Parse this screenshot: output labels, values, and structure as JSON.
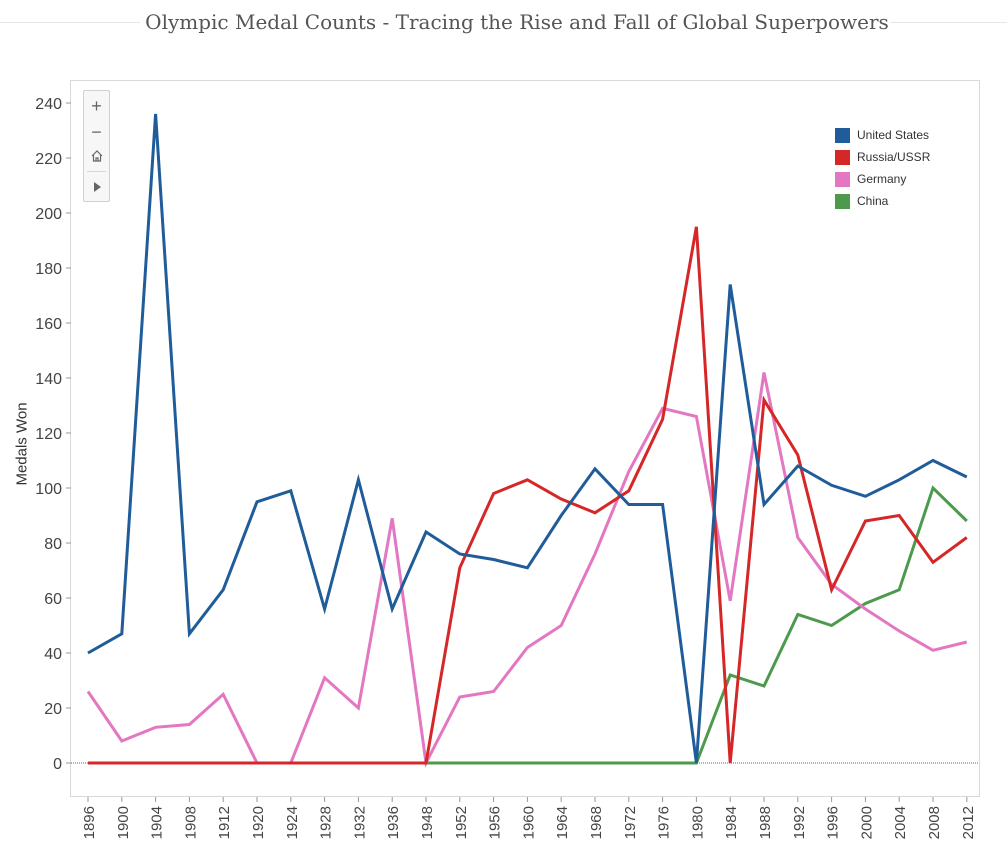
{
  "page": {
    "title": "Olympic Medal Counts - Tracing the Rise and Fall of Global Superpowers"
  },
  "toolbar": {
    "zoom_in": "+",
    "zoom_out": "−",
    "home_icon": "home-icon",
    "play_icon": "play-icon"
  },
  "chart_data": {
    "type": "line",
    "title": "Olympic Medal Counts - Tracing the Rise and Fall of Global Superpowers",
    "xlabel": "",
    "ylabel": "Medals Won",
    "ylim": [
      -15,
      245
    ],
    "yticks": [
      0,
      20,
      40,
      60,
      80,
      100,
      120,
      140,
      160,
      180,
      200,
      220,
      240
    ],
    "grid": false,
    "legend_position": "top-right",
    "categories": [
      "1896",
      "1900",
      "1904",
      "1908",
      "1912",
      "1920",
      "1924",
      "1928",
      "1932",
      "1936",
      "1948",
      "1952",
      "1956",
      "1960",
      "1964",
      "1968",
      "1972",
      "1976",
      "1980",
      "1984",
      "1988",
      "1992",
      "1996",
      "2000",
      "2004",
      "2008",
      "2012"
    ],
    "series": [
      {
        "name": "United States",
        "color": "#1f5c99",
        "values": [
          40,
          47,
          236,
          47,
          63,
          95,
          99,
          56,
          103,
          56,
          84,
          76,
          74,
          71,
          90,
          107,
          94,
          94,
          0,
          174,
          94,
          108,
          101,
          97,
          103,
          110,
          104
        ]
      },
      {
        "name": "Russia/USSR",
        "color": "#d62728",
        "values": [
          0,
          0,
          0,
          0,
          0,
          0,
          0,
          0,
          0,
          0,
          0,
          71,
          98,
          103,
          96,
          91,
          99,
          125,
          195,
          0,
          132,
          112,
          63,
          88,
          90,
          73,
          82
        ]
      },
      {
        "name": "Germany",
        "color": "#e377c2",
        "values": [
          26,
          8,
          13,
          14,
          25,
          0,
          0,
          31,
          20,
          89,
          0,
          24,
          26,
          42,
          50,
          76,
          106,
          129,
          126,
          59,
          142,
          82,
          65,
          56,
          48,
          41,
          44
        ]
      },
      {
        "name": "China",
        "color": "#4d9a4d",
        "values": [
          null,
          null,
          null,
          null,
          null,
          null,
          null,
          null,
          null,
          null,
          0,
          0,
          0,
          0,
          0,
          0,
          0,
          0,
          0,
          32,
          28,
          54,
          50,
          58,
          63,
          100,
          88
        ]
      }
    ]
  }
}
